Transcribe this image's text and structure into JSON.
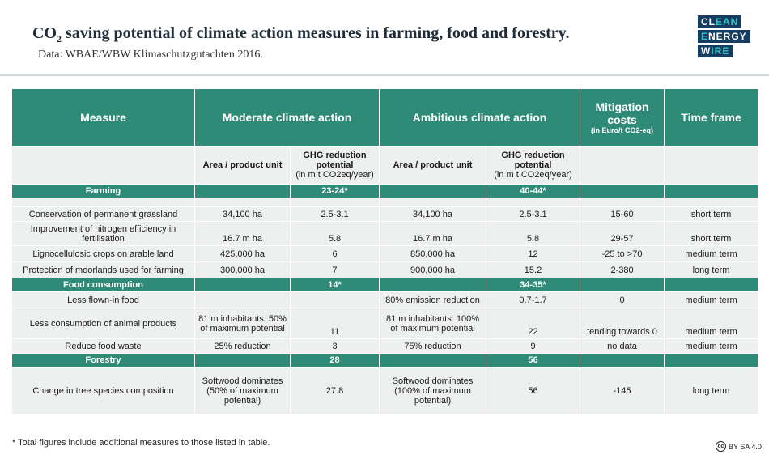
{
  "header": {
    "title_prefix": "CO",
    "title_sub": "2",
    "title_rest": " saving potential of climate action measures in farming, food and forestry.",
    "subtitle": "Data: WBAE/WBW Klimaschutzgutachten 2016."
  },
  "logo": {
    "line1_a": "CL",
    "line1_b": "EAN",
    "line2_a": "E",
    "line2_b": "NERGY",
    "line3_a": "W",
    "line3_b": "IRE"
  },
  "table": {
    "headers": {
      "measure": "Measure",
      "moderate": "Moderate climate action",
      "ambitious": "Ambitious climate action",
      "mitigation": "Mitigation costs",
      "mitigation_unit": "(in Euro/t CO2-eq)",
      "timeframe": "Time frame"
    },
    "subheaders": {
      "area": "Area / product unit",
      "ghg": "GHG reduction potential",
      "ghg_unit": "(in m t CO2eq/year)"
    },
    "sections": [
      {
        "name": "Farming",
        "moderate_total": "23-24*",
        "ambitious_total": "40-44*",
        "rows": [
          {
            "measure": "Conservation of permanent grassland",
            "mod_area": "34,100 ha",
            "mod_ghg": "2.5-3.1",
            "amb_area": "34,100 ha",
            "amb_ghg": "2.5-3.1",
            "cost": "15-60",
            "time": "short term"
          },
          {
            "measure": "Improvement of nitrogen efficiency in fertilisation",
            "mod_area": "16.7 m ha",
            "mod_ghg": "5.8",
            "amb_area": "16.7 m ha",
            "amb_ghg": "5.8",
            "cost": "29-57",
            "time": "short term"
          },
          {
            "measure": "Lignocellulosic crops on arable land",
            "mod_area": "425,000 ha",
            "mod_ghg": "6",
            "amb_area": "850,000 ha",
            "amb_ghg": "12",
            "cost": "-25 to >70",
            "time": "medium term"
          },
          {
            "measure": "Protection of moorlands used for farming",
            "mod_area": "300,000 ha",
            "mod_ghg": "7",
            "amb_area": "900,000 ha",
            "amb_ghg": "15.2",
            "cost": "2-380",
            "time": "long term"
          }
        ]
      },
      {
        "name": "Food consumption",
        "moderate_total": "14*",
        "ambitious_total": "34-35*",
        "rows": [
          {
            "measure": "Less flown-in food",
            "mod_area": "",
            "mod_ghg": "",
            "amb_area": "80% emission reduction",
            "amb_ghg": "0.7-1.7",
            "cost": "0",
            "time": "medium term"
          },
          {
            "measure": "Less consumption of animal products",
            "mod_area": "81 m inhabitants: 50% of maximum potential",
            "mod_ghg": "11",
            "amb_area": "81 m inhabitants: 100% of maximum potential",
            "amb_ghg": "22",
            "cost": "tending towards 0",
            "time": "medium term"
          },
          {
            "measure": "Reduce food waste",
            "mod_area": "25% reduction",
            "mod_ghg": "3",
            "amb_area": "75% reduction",
            "amb_ghg": "9",
            "cost": "no data",
            "time": "medium term"
          }
        ]
      },
      {
        "name": "Forestry",
        "moderate_total": "28",
        "ambitious_total": "56",
        "rows": [
          {
            "measure": "Change in tree species composition",
            "mod_area": "Softwood dominates (50% of maximum potential)",
            "mod_ghg": "27.8",
            "amb_area": "Softwood dominates (100% of maximum potential)",
            "amb_ghg": "56",
            "cost": "-145",
            "time": "long term"
          }
        ]
      }
    ]
  },
  "footnote": "* Total figures include additional measures to those listed in table.",
  "license": {
    "icon": "cc",
    "text": "BY SA 4.0"
  }
}
